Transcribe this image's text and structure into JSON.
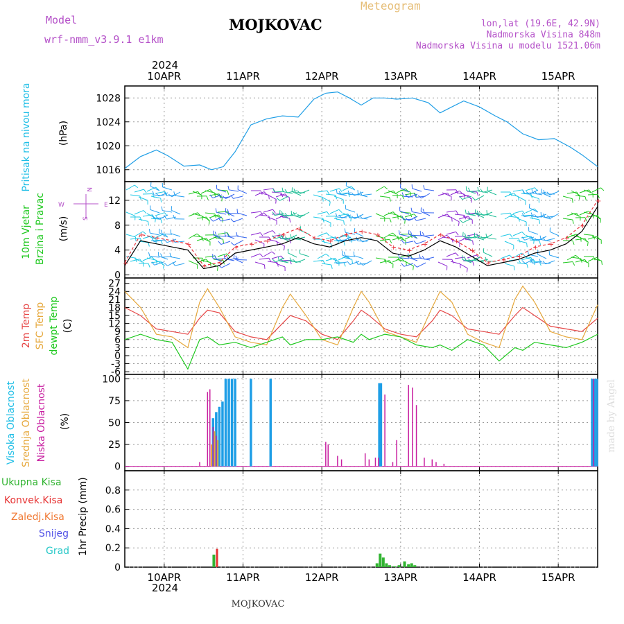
{
  "header": {
    "model_label": "Model",
    "model_name": "wrf-nmm_v3.9.1  e1km",
    "station": "MOJKOVAC",
    "meteogram": "Meteogram",
    "lonlat": "lon,lat (19.6E, 42.9N)",
    "elev": "Nadmorska Visina 848m",
    "elev_model": "Nadmorska Visina u modelu 1521.06m"
  },
  "footer_station": "MOJKOVAC",
  "credit": "made by Angel",
  "x_axis": {
    "year": "2024",
    "ticks": [
      "10APR",
      "11APR",
      "12APR",
      "13APR",
      "14APR",
      "15APR"
    ],
    "start_day": 9.5,
    "end_day": 15.5
  },
  "panel_labels": {
    "pressure": [
      "Pritisak na nivou mora",
      "(hPa)"
    ],
    "wind": [
      "10m Vjetar",
      "Brzina i Pravac",
      "(m/s)"
    ],
    "temp": [
      "2m Temp",
      "SFC Temp",
      "dewpt Temp",
      "(C)"
    ],
    "cloud": [
      "Visoka Oblacnost",
      "Srednja Oblacnost",
      "Niska Oblacnost",
      "(%)"
    ],
    "precip": [
      "Ukupna Kisa",
      "Konvek.Kisa",
      "Zaledj.Kisa",
      "Snijeg",
      "Grad",
      "1hr Precip (mm)"
    ]
  },
  "wind_compass": {
    "n": "N",
    "s": "S",
    "e": "E",
    "w": "W"
  },
  "colors": {
    "pressure": "#1e9ee6",
    "wind_speed": "#000000",
    "wind_gust": "#e8323c",
    "t2m": "#e64646",
    "tsfc": "#e6a83c",
    "dewpt": "#1ec81e",
    "cloud_high": "#1e9ee6",
    "cloud_mid": "#e6a83c",
    "cloud_low": "#c81ea0",
    "rain_total": "#32b432",
    "rain_conv": "#e63232",
    "freezing": "#f07832",
    "snow": "#5050e6",
    "hail": "#28c8c8"
  },
  "chart_data": [
    {
      "type": "line",
      "title": "Pritisak na nivou mora",
      "ylabel": "(hPa)",
      "ylim": [
        1014,
        1030
      ],
      "yticks": [
        1016,
        1020,
        1024,
        1028
      ],
      "x": [
        9.5,
        9.7,
        9.9,
        10.05,
        10.25,
        10.45,
        10.6,
        10.75,
        10.9,
        11.1,
        11.3,
        11.5,
        11.7,
        11.9,
        12.05,
        12.2,
        12.35,
        12.5,
        12.65,
        12.8,
        12.95,
        13.15,
        13.35,
        13.5,
        13.65,
        13.8,
        14.0,
        14.2,
        14.35,
        14.55,
        14.75,
        14.95,
        15.15,
        15.3,
        15.5
      ],
      "series": [
        {
          "values": [
            1016.2,
            1018.2,
            1019.3,
            1018.3,
            1016.6,
            1016.8,
            1016.0,
            1016.5,
            1019.0,
            1023.5,
            1024.5,
            1025.0,
            1024.8,
            1027.8,
            1028.8,
            1029.0,
            1028.0,
            1026.8,
            1028.0,
            1028.0,
            1027.8,
            1028.0,
            1027.2,
            1025.5,
            1026.5,
            1027.5,
            1026.5,
            1025.0,
            1024.0,
            1022.0,
            1021.0,
            1021.2,
            1019.8,
            1018.5,
            1016.5
          ]
        }
      ]
    },
    {
      "type": "line",
      "title": "10m Vjetar Brzina i Pravac",
      "ylabel": "(m/s)",
      "ylim": [
        -0.5,
        15
      ],
      "yticks": [
        0,
        4,
        8,
        12
      ],
      "x": [
        9.5,
        9.7,
        9.9,
        10.1,
        10.3,
        10.5,
        10.7,
        10.9,
        11.1,
        11.3,
        11.5,
        11.7,
        11.9,
        12.1,
        12.3,
        12.5,
        12.7,
        12.9,
        13.1,
        13.3,
        13.5,
        13.7,
        13.9,
        14.1,
        14.3,
        14.5,
        14.7,
        14.9,
        15.1,
        15.3,
        15.5
      ],
      "series": [
        {
          "name": "speed",
          "values": [
            1.5,
            5.5,
            5.0,
            4.5,
            4.0,
            1.0,
            1.5,
            3.5,
            4.0,
            4.5,
            5.0,
            6.0,
            5.0,
            4.5,
            5.5,
            6.0,
            5.5,
            3.5,
            3.0,
            4.0,
            5.5,
            4.5,
            3.0,
            1.5,
            2.0,
            2.5,
            3.5,
            4.0,
            5.0,
            7.0,
            11.0
          ]
        },
        {
          "name": "gust",
          "values": [
            2.0,
            6.5,
            6.0,
            5.5,
            5.0,
            1.5,
            2.0,
            4.5,
            5.0,
            5.5,
            6.5,
            7.5,
            6.0,
            5.5,
            6.5,
            7.0,
            6.5,
            4.5,
            4.0,
            5.0,
            6.5,
            5.5,
            4.0,
            2.0,
            2.5,
            3.0,
            4.5,
            5.0,
            6.0,
            8.0,
            12.0
          ]
        }
      ]
    },
    {
      "type": "line",
      "title": "2m Temp / SFC Temp / dewpt Temp",
      "ylabel": "(C)",
      "ylim": [
        -7,
        29
      ],
      "yticks": [
        -6,
        -3,
        0,
        3,
        6,
        9,
        12,
        15,
        18,
        21,
        24,
        27
      ],
      "x": [
        9.5,
        9.7,
        9.9,
        10.1,
        10.3,
        10.45,
        10.55,
        10.7,
        10.9,
        11.1,
        11.3,
        11.5,
        11.6,
        11.8,
        12.0,
        12.2,
        12.4,
        12.5,
        12.6,
        12.8,
        13.0,
        13.2,
        13.4,
        13.5,
        13.65,
        13.85,
        14.05,
        14.25,
        14.45,
        14.55,
        14.7,
        14.9,
        15.1,
        15.3,
        15.5
      ],
      "series": [
        {
          "name": "2m Temp",
          "values": [
            18,
            15,
            10,
            9,
            8,
            14,
            17,
            16,
            9,
            7,
            6,
            12,
            15,
            13,
            8,
            6,
            13,
            17,
            15,
            10,
            8,
            7,
            13,
            17,
            15,
            10,
            9,
            8,
            15,
            18,
            15,
            11,
            10,
            9,
            14
          ]
        },
        {
          "name": "SFC Temp",
          "values": [
            24,
            18,
            8,
            7,
            3,
            20,
            25,
            18,
            7,
            5,
            4,
            18,
            23,
            15,
            6,
            4,
            18,
            24,
            20,
            9,
            7,
            5,
            18,
            24,
            20,
            8,
            5,
            3,
            21,
            26,
            20,
            9,
            7,
            6,
            19
          ]
        },
        {
          "name": "dewpt Temp",
          "values": [
            6,
            8,
            6,
            5,
            -5,
            6,
            7,
            4,
            5,
            3,
            5,
            7,
            4,
            6,
            6,
            7,
            5,
            8,
            6,
            8,
            7,
            4,
            3,
            4,
            2,
            6,
            4,
            -2,
            3,
            2,
            5,
            4,
            3,
            5,
            8
          ]
        }
      ]
    },
    {
      "type": "bar",
      "title": "Visoka / Srednja / Niska Oblacnost",
      "ylabel": "(%)",
      "ylim": [
        -5,
        105
      ],
      "yticks": [
        0,
        25,
        50,
        75,
        100
      ],
      "series": [
        {
          "name": "Visoka Oblacnost",
          "x": [
            10.62,
            10.66,
            10.7,
            10.74,
            10.78,
            10.82,
            10.86,
            10.9,
            11.1,
            11.35,
            12.73,
            12.75,
            15.43,
            15.46,
            15.49
          ],
          "values": [
            55,
            62,
            68,
            74,
            100,
            100,
            100,
            100,
            100,
            100,
            95,
            95,
            100,
            100,
            100
          ]
        },
        {
          "name": "Srednja Oblacnost",
          "x": [
            10.6,
            10.64,
            10.68
          ],
          "values": [
            25,
            40,
            30
          ]
        },
        {
          "name": "Niska Oblacnost",
          "x": [
            10.45,
            10.55,
            10.58,
            10.62,
            10.66,
            12.05,
            12.08,
            12.2,
            12.25,
            12.55,
            12.6,
            12.68,
            12.72,
            12.8,
            12.9,
            12.95,
            13.1,
            13.15,
            13.2,
            13.3,
            13.4,
            13.45,
            13.55,
            15.45
          ],
          "values": [
            5,
            85,
            88,
            45,
            35,
            28,
            25,
            12,
            8,
            15,
            8,
            10,
            10,
            82,
            5,
            30,
            93,
            90,
            70,
            10,
            8,
            5,
            3,
            100
          ]
        }
      ]
    },
    {
      "type": "bar",
      "title": "1hr Precip",
      "ylabel": "1hr Precip (mm)",
      "ylim": [
        0,
        1.0
      ],
      "yticks": [
        0,
        0.2,
        0.4,
        0.6,
        0.8
      ],
      "series": [
        {
          "name": "Ukupna Kisa",
          "x": [
            10.63,
            12.7,
            12.74,
            12.78,
            12.82,
            12.86,
            12.92,
            12.98,
            13.05,
            13.1,
            13.14,
            13.18
          ],
          "values": [
            0.13,
            0.04,
            0.14,
            0.1,
            0.04,
            0.02,
            0.01,
            0.02,
            0.06,
            0.03,
            0.04,
            0.02
          ]
        },
        {
          "name": "Konvek.Kisa",
          "x": [
            10.67
          ],
          "values": [
            0.19
          ]
        }
      ]
    }
  ]
}
